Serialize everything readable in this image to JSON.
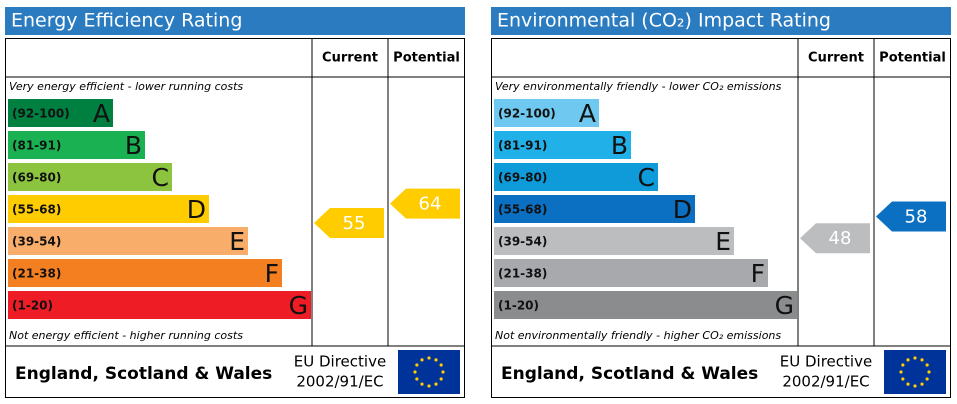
{
  "panels": [
    {
      "title": "Energy Efficiency Rating",
      "headers": [
        "Current",
        "Potential"
      ],
      "top_note": "Very energy efficient - lower running costs",
      "bottom_note": "Not energy efficient - higher running costs",
      "bands": [
        {
          "range": "(92-100)",
          "letter": "A",
          "color": "#008040"
        },
        {
          "range": "(81-91)",
          "letter": "B",
          "color": "#1ab152"
        },
        {
          "range": "(69-80)",
          "letter": "C",
          "color": "#8cc43f"
        },
        {
          "range": "(55-68)",
          "letter": "D",
          "color": "#ffcc00"
        },
        {
          "range": "(39-54)",
          "letter": "E",
          "color": "#f8ad6a"
        },
        {
          "range": "(21-38)",
          "letter": "F",
          "color": "#f47f20"
        },
        {
          "range": "(1-20)",
          "letter": "G",
          "color": "#ee1c25"
        }
      ],
      "current": 55,
      "potential": 64,
      "footer": {
        "region": "England, Scotland & Wales",
        "directive": [
          "EU Directive",
          "2002/91/EC"
        ]
      }
    },
    {
      "title": "Environmental (CO₂) Impact Rating",
      "headers": [
        "Current",
        "Potential"
      ],
      "top_note": "Very environmentally friendly - lower CO₂ emissions",
      "bottom_note": "Not environmentally friendly - higher CO₂ emissions",
      "bands": [
        {
          "range": "(92-100)",
          "letter": "A",
          "color": "#6fc8ef"
        },
        {
          "range": "(81-91)",
          "letter": "B",
          "color": "#22b0e8"
        },
        {
          "range": "(69-80)",
          "letter": "C",
          "color": "#0f9ad9"
        },
        {
          "range": "(55-68)",
          "letter": "D",
          "color": "#0b6fc2"
        },
        {
          "range": "(39-54)",
          "letter": "E",
          "color": "#bbbdbf"
        },
        {
          "range": "(21-38)",
          "letter": "F",
          "color": "#a7a9ac"
        },
        {
          "range": "(1-20)",
          "letter": "G",
          "color": "#8a8c8e"
        }
      ],
      "current": 48,
      "potential": 58,
      "footer": {
        "region": "England, Scotland & Wales",
        "directive": [
          "EU Directive",
          "2002/91/EC"
        ]
      }
    }
  ]
}
